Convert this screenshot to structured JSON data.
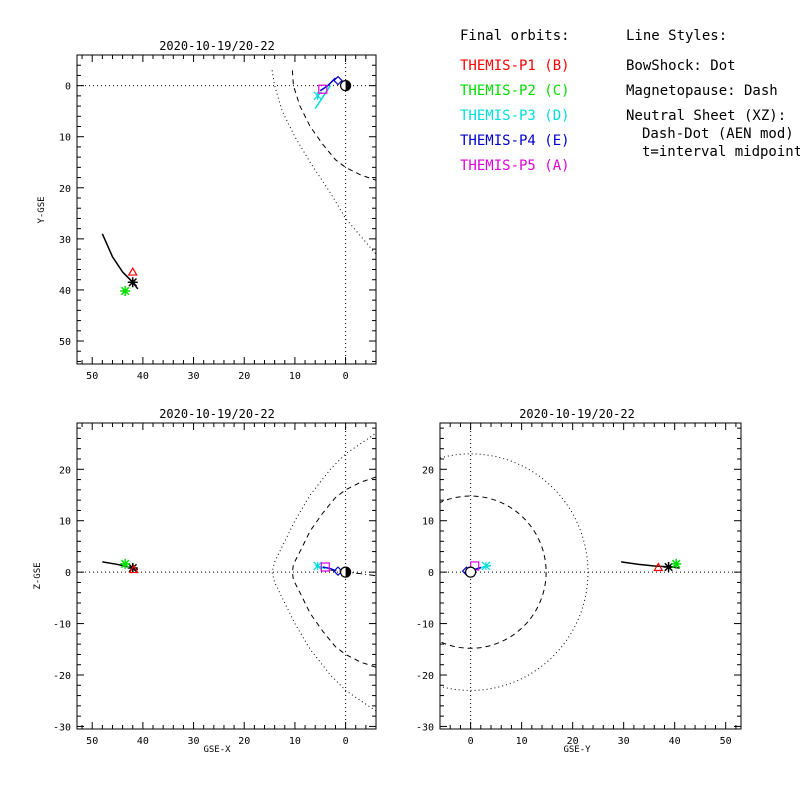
{
  "legend": {
    "orbits_heading": "Final orbits:",
    "orbits": [
      {
        "label": "THEMIS-P1 (B)",
        "color": "#ff0000"
      },
      {
        "label": "THEMIS-P2 (C)",
        "color": "#00dd00"
      },
      {
        "label": "THEMIS-P3 (D)",
        "color": "#00dddd"
      },
      {
        "label": "THEMIS-P4 (E)",
        "color": "#0000cc"
      },
      {
        "label": "THEMIS-P5 (A)",
        "color": "#dd00dd"
      }
    ],
    "styles_heading": "Line Styles:",
    "styles": [
      "BowShock: Dot",
      "Magnetopause: Dash",
      "Neutral Sheet (XZ):",
      "Dash-Dot (AEN mod)",
      "t=interval midpoint"
    ]
  },
  "chart_data": [
    {
      "type": "line",
      "title": "2020-10-19/20-22",
      "xlabel": "",
      "ylabel": "Y-GSE",
      "xlim": [
        53,
        -6
      ],
      "ylim": [
        54.5,
        -6
      ],
      "xticks": [
        50,
        40,
        30,
        20,
        10,
        0
      ],
      "yticks": [
        0,
        10,
        20,
        30,
        40,
        50
      ],
      "reference_lines": {
        "x": 0,
        "y": 0
      },
      "bow_shock": {
        "x": [
          14.5,
          14,
          12.5,
          10,
          7,
          3,
          0,
          -3,
          -6
        ],
        "y": [
          -3,
          0,
          5,
          10,
          15,
          21,
          26,
          29.5,
          33
        ]
      },
      "magnetopause": {
        "x": [
          10.5,
          10.3,
          9,
          7,
          4.5,
          2,
          0,
          -3,
          -6
        ],
        "y": [
          -3,
          0,
          4,
          8,
          11.5,
          14.5,
          16,
          17.5,
          18.5
        ]
      },
      "series": [
        {
          "color": "#000000",
          "x": [
            48,
            46,
            44,
            42,
            41
          ],
          "y": [
            29,
            33.5,
            36.5,
            38.5,
            39.8
          ],
          "end": {
            "x": 42,
            "y": 38.5,
            "marker": "asterisk"
          }
        },
        {
          "color": "#ff0000",
          "end": {
            "x": 42,
            "y": 36.5,
            "marker": "triangle"
          }
        },
        {
          "color": "#00dd00",
          "end": {
            "x": 43.5,
            "y": 40.2,
            "marker": "asterisk"
          }
        },
        {
          "color": "#00dddd",
          "x": [
            6,
            5,
            4,
            3
          ],
          "y": [
            4.5,
            3,
            1.5,
            0
          ],
          "end": {
            "x": 5.5,
            "y": 2,
            "marker": "star"
          }
        },
        {
          "color": "#0000cc",
          "x": [
            5,
            3.5,
            2
          ],
          "y": [
            1,
            0,
            -1.5
          ],
          "end": {
            "x": 1.5,
            "y": -1,
            "marker": "diamond"
          }
        },
        {
          "color": "#dd00dd",
          "end": {
            "x": 4.5,
            "y": 0.7,
            "marker": "square"
          }
        }
      ],
      "earth": {
        "x": 0,
        "y": 0
      }
    },
    {
      "type": "line",
      "title": "2020-10-19/20-22",
      "xlabel": "GSE-X",
      "ylabel": "Z-GSE",
      "xlim": [
        53,
        -6
      ],
      "ylim": [
        -30.5,
        29
      ],
      "xticks": [
        50,
        40,
        30,
        20,
        10,
        0
      ],
      "yticks": [
        20,
        10,
        0,
        -10,
        -20,
        -30
      ],
      "reference_lines": {
        "x": 0,
        "y": 0
      },
      "bow_shock": {
        "x": [
          -6,
          -3,
          0,
          3,
          7,
          10,
          12.5,
          14,
          14.5,
          14,
          12.5,
          10,
          7,
          3,
          0,
          -3,
          -6
        ],
        "z": [
          -27,
          -25,
          -23,
          -20,
          -15,
          -10,
          -5,
          -2,
          0,
          2,
          5,
          10,
          15,
          20,
          23,
          25,
          27
        ]
      },
      "magnetopause": {
        "x": [
          -6,
          -3,
          0,
          2,
          4.5,
          7,
          9,
          10.3,
          10.5,
          10.3,
          9,
          7,
          4.5,
          2,
          0,
          -3,
          -6
        ],
        "z": [
          -18.5,
          -17.5,
          -16,
          -14.5,
          -11.5,
          -8,
          -4,
          -1.5,
          0,
          1.5,
          4,
          8,
          11.5,
          14.5,
          16,
          17.5,
          18.5
        ]
      },
      "neutral_sheet": {
        "x": [
          3,
          1,
          0,
          -3,
          -6
        ],
        "z": [
          0.4,
          0.2,
          0,
          -0.3,
          -0.7
        ]
      },
      "series": [
        {
          "color": "#000000",
          "x": [
            48,
            45,
            42,
            41
          ],
          "z": [
            2,
            1.5,
            0.8,
            0.5
          ],
          "end": {
            "x": 42,
            "z": 0.8,
            "marker": "asterisk"
          }
        },
        {
          "color": "#ff0000",
          "end": {
            "x": 41.8,
            "z": 0.5,
            "marker": "triangle"
          }
        },
        {
          "color": "#00dd00",
          "end": {
            "x": 43.5,
            "z": 1.6,
            "marker": "asterisk"
          }
        },
        {
          "color": "#00dddd",
          "x": [
            6,
            5,
            4
          ],
          "z": [
            1.3,
            1,
            0.7
          ],
          "end": {
            "x": 5.5,
            "z": 1.2,
            "marker": "star"
          }
        },
        {
          "color": "#0000cc",
          "x": [
            4.5,
            3,
            2
          ],
          "z": [
            1,
            0.7,
            0.3
          ],
          "end": {
            "x": 1.5,
            "z": 0.2,
            "marker": "diamond"
          }
        },
        {
          "color": "#dd00dd",
          "end": {
            "x": 4,
            "z": 1,
            "marker": "square"
          }
        }
      ],
      "earth": {
        "x": 0,
        "z": 0
      }
    },
    {
      "type": "line",
      "title": "2020-10-19/20-22",
      "xlabel": "GSE-Y",
      "ylabel": "",
      "xlim": [
        -6,
        53
      ],
      "ylim": [
        -30.5,
        29
      ],
      "xticks": [
        0,
        10,
        20,
        30,
        40,
        50
      ],
      "yticks": [
        20,
        10,
        0,
        -10,
        -20,
        -30
      ],
      "reference_lines": {
        "x": 0,
        "y": 0
      },
      "bow_shock_radius": 23,
      "magnetopause_radius": 14.8,
      "series": [
        {
          "color": "#000000",
          "x": [
            29.5,
            33,
            36,
            39.5,
            41
          ],
          "z": [
            2,
            1.5,
            1.2,
            1,
            0.8
          ],
          "end": {
            "x": 38.8,
            "z": 1,
            "marker": "asterisk"
          }
        },
        {
          "color": "#ff0000",
          "end": {
            "x": 36.8,
            "z": 0.9,
            "marker": "triangle"
          }
        },
        {
          "color": "#00dd00",
          "end": {
            "x": 40.3,
            "z": 1.6,
            "marker": "asterisk"
          }
        },
        {
          "color": "#00dddd",
          "x": [
            1,
            2.5,
            4
          ],
          "z": [
            0.5,
            1,
            1.3
          ],
          "end": {
            "x": 3,
            "z": 1.2,
            "marker": "star"
          }
        },
        {
          "color": "#0000cc",
          "x": [
            0,
            1,
            2
          ],
          "z": [
            0.3,
            0.6,
            0.9
          ],
          "end": {
            "x": -0.8,
            "z": 0.2,
            "marker": "diamond"
          }
        },
        {
          "color": "#dd00dd",
          "end": {
            "x": 0.8,
            "z": 1.2,
            "marker": "square"
          }
        }
      ],
      "earth": {
        "x": 0,
        "z": 0
      }
    }
  ]
}
